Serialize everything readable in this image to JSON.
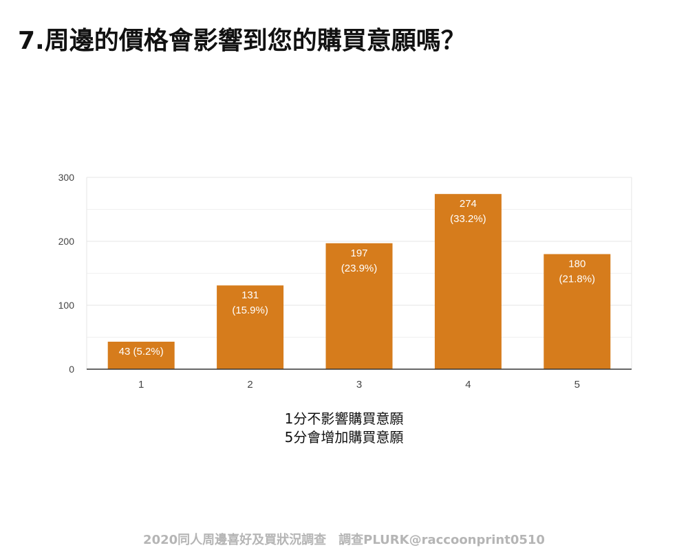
{
  "title": "7.周邊的價格會影響到您的購買意願嗎？",
  "footer": "2020同人周邊喜好及買狀況調查　調查PLURK@raccoonprint0510",
  "colors": {
    "bar": "#d67c1c",
    "grid": "#e6e6e6",
    "axis": "#333333",
    "tick_text": "#444444",
    "bar_label": "#ffffff"
  },
  "chart_data": {
    "type": "bar",
    "categories": [
      "1",
      "2",
      "3",
      "4",
      "5"
    ],
    "values": [
      43,
      131,
      197,
      274,
      180
    ],
    "percentages": [
      "5.2%",
      "15.9%",
      "23.9%",
      "33.2%",
      "21.8%"
    ],
    "data_labels": [
      "43 (5.2%)",
      "131 (15.9%)",
      "197 (23.9%)",
      "274 (33.2%)",
      "180 (21.8%)"
    ],
    "xlabel_lines": [
      "1分不影響購買意願",
      "5分會增加購買意願"
    ],
    "ylim": [
      0,
      300
    ],
    "yticks": [
      0,
      100,
      200,
      300
    ],
    "minor_gridlines": [
      50,
      150,
      250
    ],
    "grid": true
  }
}
